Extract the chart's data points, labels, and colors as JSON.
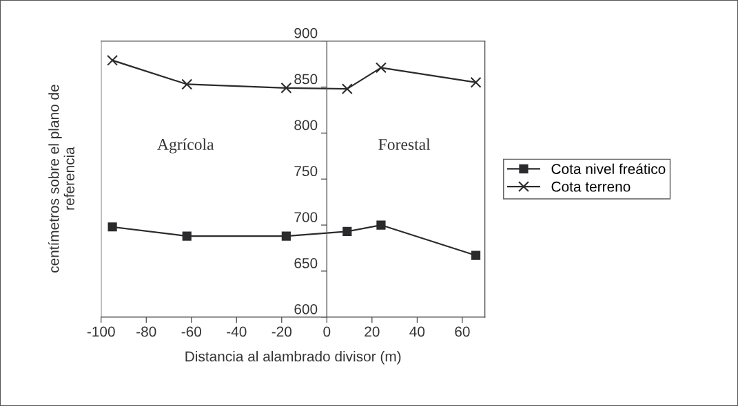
{
  "chart_data": {
    "type": "line",
    "xlabel": "Distancia al alambrado divisor (m)",
    "ylabel": "centímetros sobre el plano de\nreferencia",
    "x": [
      -95,
      -62,
      -18,
      9,
      24,
      66
    ],
    "series": [
      {
        "name": "Cota nivel freático",
        "color": "#2b2b2e",
        "marker": "square",
        "values": [
          698,
          688,
          688,
          693,
          700,
          667
        ]
      },
      {
        "name": "Cota terreno",
        "color": "#2b2b2e",
        "marker": "cross",
        "values": [
          879,
          853,
          849,
          848,
          871,
          855
        ]
      }
    ],
    "xlim": [
      -100,
      70
    ],
    "xticks": [
      -100,
      -80,
      -60,
      -40,
      -20,
      0,
      20,
      40,
      60
    ],
    "ylim": [
      600,
      900
    ],
    "yticks": [
      600,
      650,
      700,
      750,
      800,
      850,
      900
    ],
    "annotations": [
      "Agrícola",
      "Forestal"
    ],
    "legend": "right",
    "grid": false,
    "line_style": "solid"
  }
}
